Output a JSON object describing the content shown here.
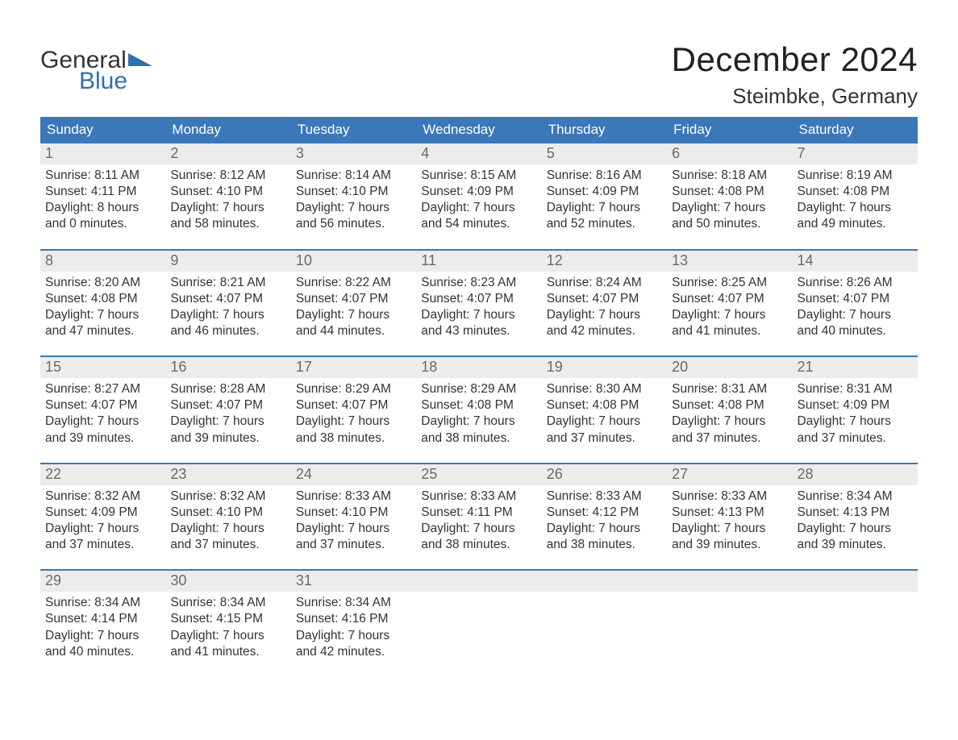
{
  "brand": {
    "part1": "General",
    "part2": "Blue"
  },
  "title": "December 2024",
  "location": "Steimbke, Germany",
  "colors": {
    "header_bg": "#3a78b8",
    "header_text": "#ffffff",
    "band_bg": "#ececec",
    "band_text": "#6a6a6a",
    "body_text": "#333333",
    "accent_blue": "#2f6eaf",
    "row_border": "#3a78b8",
    "page_bg": "#ffffff"
  },
  "day_names": [
    "Sunday",
    "Monday",
    "Tuesday",
    "Wednesday",
    "Thursday",
    "Friday",
    "Saturday"
  ],
  "weeks": [
    [
      {
        "n": "1",
        "sunrise": "8:11 AM",
        "sunset": "4:11 PM",
        "dl1": "8 hours",
        "dl2": "and 0 minutes."
      },
      {
        "n": "2",
        "sunrise": "8:12 AM",
        "sunset": "4:10 PM",
        "dl1": "7 hours",
        "dl2": "and 58 minutes."
      },
      {
        "n": "3",
        "sunrise": "8:14 AM",
        "sunset": "4:10 PM",
        "dl1": "7 hours",
        "dl2": "and 56 minutes."
      },
      {
        "n": "4",
        "sunrise": "8:15 AM",
        "sunset": "4:09 PM",
        "dl1": "7 hours",
        "dl2": "and 54 minutes."
      },
      {
        "n": "5",
        "sunrise": "8:16 AM",
        "sunset": "4:09 PM",
        "dl1": "7 hours",
        "dl2": "and 52 minutes."
      },
      {
        "n": "6",
        "sunrise": "8:18 AM",
        "sunset": "4:08 PM",
        "dl1": "7 hours",
        "dl2": "and 50 minutes."
      },
      {
        "n": "7",
        "sunrise": "8:19 AM",
        "sunset": "4:08 PM",
        "dl1": "7 hours",
        "dl2": "and 49 minutes."
      }
    ],
    [
      {
        "n": "8",
        "sunrise": "8:20 AM",
        "sunset": "4:08 PM",
        "dl1": "7 hours",
        "dl2": "and 47 minutes."
      },
      {
        "n": "9",
        "sunrise": "8:21 AM",
        "sunset": "4:07 PM",
        "dl1": "7 hours",
        "dl2": "and 46 minutes."
      },
      {
        "n": "10",
        "sunrise": "8:22 AM",
        "sunset": "4:07 PM",
        "dl1": "7 hours",
        "dl2": "and 44 minutes."
      },
      {
        "n": "11",
        "sunrise": "8:23 AM",
        "sunset": "4:07 PM",
        "dl1": "7 hours",
        "dl2": "and 43 minutes."
      },
      {
        "n": "12",
        "sunrise": "8:24 AM",
        "sunset": "4:07 PM",
        "dl1": "7 hours",
        "dl2": "and 42 minutes."
      },
      {
        "n": "13",
        "sunrise": "8:25 AM",
        "sunset": "4:07 PM",
        "dl1": "7 hours",
        "dl2": "and 41 minutes."
      },
      {
        "n": "14",
        "sunrise": "8:26 AM",
        "sunset": "4:07 PM",
        "dl1": "7 hours",
        "dl2": "and 40 minutes."
      }
    ],
    [
      {
        "n": "15",
        "sunrise": "8:27 AM",
        "sunset": "4:07 PM",
        "dl1": "7 hours",
        "dl2": "and 39 minutes."
      },
      {
        "n": "16",
        "sunrise": "8:28 AM",
        "sunset": "4:07 PM",
        "dl1": "7 hours",
        "dl2": "and 39 minutes."
      },
      {
        "n": "17",
        "sunrise": "8:29 AM",
        "sunset": "4:07 PM",
        "dl1": "7 hours",
        "dl2": "and 38 minutes."
      },
      {
        "n": "18",
        "sunrise": "8:29 AM",
        "sunset": "4:08 PM",
        "dl1": "7 hours",
        "dl2": "and 38 minutes."
      },
      {
        "n": "19",
        "sunrise": "8:30 AM",
        "sunset": "4:08 PM",
        "dl1": "7 hours",
        "dl2": "and 37 minutes."
      },
      {
        "n": "20",
        "sunrise": "8:31 AM",
        "sunset": "4:08 PM",
        "dl1": "7 hours",
        "dl2": "and 37 minutes."
      },
      {
        "n": "21",
        "sunrise": "8:31 AM",
        "sunset": "4:09 PM",
        "dl1": "7 hours",
        "dl2": "and 37 minutes."
      }
    ],
    [
      {
        "n": "22",
        "sunrise": "8:32 AM",
        "sunset": "4:09 PM",
        "dl1": "7 hours",
        "dl2": "and 37 minutes."
      },
      {
        "n": "23",
        "sunrise": "8:32 AM",
        "sunset": "4:10 PM",
        "dl1": "7 hours",
        "dl2": "and 37 minutes."
      },
      {
        "n": "24",
        "sunrise": "8:33 AM",
        "sunset": "4:10 PM",
        "dl1": "7 hours",
        "dl2": "and 37 minutes."
      },
      {
        "n": "25",
        "sunrise": "8:33 AM",
        "sunset": "4:11 PM",
        "dl1": "7 hours",
        "dl2": "and 38 minutes."
      },
      {
        "n": "26",
        "sunrise": "8:33 AM",
        "sunset": "4:12 PM",
        "dl1": "7 hours",
        "dl2": "and 38 minutes."
      },
      {
        "n": "27",
        "sunrise": "8:33 AM",
        "sunset": "4:13 PM",
        "dl1": "7 hours",
        "dl2": "and 39 minutes."
      },
      {
        "n": "28",
        "sunrise": "8:34 AM",
        "sunset": "4:13 PM",
        "dl1": "7 hours",
        "dl2": "and 39 minutes."
      }
    ],
    [
      {
        "n": "29",
        "sunrise": "8:34 AM",
        "sunset": "4:14 PM",
        "dl1": "7 hours",
        "dl2": "and 40 minutes."
      },
      {
        "n": "30",
        "sunrise": "8:34 AM",
        "sunset": "4:15 PM",
        "dl1": "7 hours",
        "dl2": "and 41 minutes."
      },
      {
        "n": "31",
        "sunrise": "8:34 AM",
        "sunset": "4:16 PM",
        "dl1": "7 hours",
        "dl2": "and 42 minutes."
      },
      null,
      null,
      null,
      null
    ]
  ],
  "labels": {
    "sunrise": "Sunrise: ",
    "sunset": "Sunset: ",
    "daylight": "Daylight: "
  }
}
